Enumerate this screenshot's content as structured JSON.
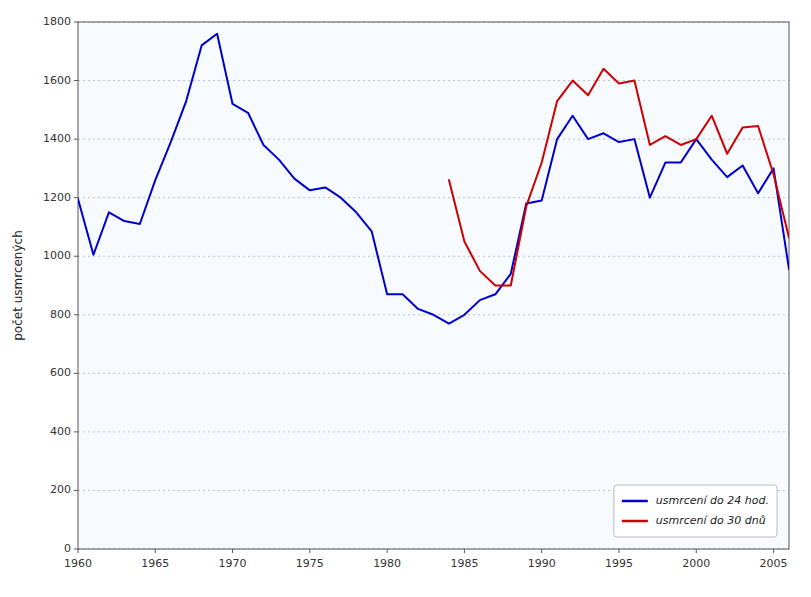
{
  "chart_data": {
    "type": "line",
    "ylabel": "počet usmrcených",
    "x": [
      1960,
      1961,
      1962,
      1963,
      1964,
      1965,
      1966,
      1967,
      1968,
      1969,
      1970,
      1971,
      1972,
      1973,
      1974,
      1975,
      1976,
      1977,
      1978,
      1979,
      1980,
      1981,
      1982,
      1983,
      1984,
      1985,
      1986,
      1987,
      1988,
      1989,
      1990,
      1991,
      1992,
      1993,
      1994,
      1995,
      1996,
      1997,
      1998,
      1999,
      2000,
      2001,
      2002,
      2003,
      2004,
      2005,
      2006
    ],
    "series": [
      {
        "name": "usmrcení do 24 hod.",
        "color": "#0000cc",
        "values": [
          1195,
          1005,
          1150,
          1120,
          1110,
          1260,
          1390,
          1530,
          1720,
          1760,
          1520,
          1490,
          1380,
          1330,
          1265,
          1225,
          1235,
          1200,
          1150,
          1085,
          870,
          870,
          820,
          800,
          770,
          800,
          850,
          870,
          940,
          1180,
          1190,
          1400,
          1480,
          1400,
          1420,
          1390,
          1400,
          1200,
          1320,
          1320,
          1400,
          1330,
          1270,
          1310,
          1215,
          1300,
          956
        ]
      },
      {
        "name": "usmrcení do 30 dnů",
        "color": "#cc0000",
        "values": [
          null,
          null,
          null,
          null,
          null,
          null,
          null,
          null,
          null,
          null,
          null,
          null,
          null,
          null,
          null,
          null,
          null,
          null,
          null,
          null,
          null,
          null,
          null,
          null,
          1260,
          1050,
          950,
          900,
          900,
          1170,
          1320,
          1530,
          1600,
          1550,
          1640,
          1590,
          1600,
          1380,
          1410,
          1380,
          1400,
          1480,
          1350,
          1440,
          1445,
          1280,
          1063
        ]
      }
    ],
    "xlim": [
      1960,
      2006
    ],
    "ylim": [
      0,
      1800
    ],
    "xticks": [
      1960,
      1965,
      1970,
      1975,
      1980,
      1985,
      1990,
      1995,
      2000,
      2005
    ],
    "yticks": [
      0,
      200,
      400,
      600,
      800,
      1000,
      1200,
      1400,
      1600,
      1800
    ],
    "grid": true,
    "legend": "lower right"
  }
}
